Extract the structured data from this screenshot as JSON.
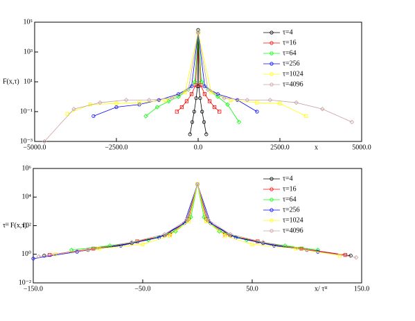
{
  "chart_data": [
    {
      "type": "line",
      "xlabel": "x",
      "ylabel": "F(x,τ)",
      "xlim": [
        -5000,
        5000
      ],
      "ylim": [
        0.001,
        100000
      ],
      "log_y": true,
      "legend": "upper right",
      "xticks": [
        {
          "value": -5000,
          "label": "−5000.0"
        },
        {
          "value": -2500,
          "label": "−2500.0"
        },
        {
          "value": 0,
          "label": "0.0"
        },
        {
          "value": 2500,
          "label": "2500.0"
        },
        {
          "value": 5000,
          "label": "5000.0"
        }
      ],
      "yticks": [
        {
          "value": 0.001,
          "label": "10⁻³"
        },
        {
          "value": 0.1,
          "label": "10⁻¹"
        },
        {
          "value": 10,
          "label": "10¹"
        },
        {
          "value": 1000,
          "label": "10³"
        },
        {
          "value": 100000,
          "label": "10⁵"
        }
      ],
      "series": [
        {
          "name": "τ=4",
          "color": "#000000",
          "x": [
            -250,
            -180,
            -120,
            -60,
            -20,
            0,
            20,
            60,
            120,
            180,
            250
          ],
          "values": [
            0.003,
            0.02,
            0.1,
            0.8,
            5,
            30000,
            5,
            0.8,
            0.1,
            0.02,
            0.003
          ]
        },
        {
          "name": "τ=16",
          "color": "#ff0000",
          "x": [
            -650,
            -500,
            -350,
            -200,
            -80,
            0,
            80,
            200,
            350,
            500,
            650
          ],
          "values": [
            0.1,
            0.2,
            0.5,
            1.5,
            6,
            20000,
            6,
            1.5,
            0.5,
            0.2,
            0.1
          ]
        },
        {
          "name": "τ=64",
          "color": "#00ff00",
          "x": [
            -1600,
            -1250,
            -900,
            -600,
            -300,
            -100,
            0,
            100,
            300,
            600,
            900,
            1250
          ],
          "values": [
            0.05,
            0.2,
            0.5,
            1,
            3,
            10,
            20000,
            10,
            3,
            1,
            0.3,
            0.02
          ]
        },
        {
          "name": "τ=256",
          "color": "#0000ff",
          "x": [
            -3200,
            -2500,
            -1800,
            -1200,
            -600,
            -200,
            0,
            200,
            600,
            1200,
            1800
          ],
          "values": [
            0.05,
            0.2,
            0.3,
            0.6,
            1.5,
            5,
            20000,
            5,
            1.5,
            0.6,
            0.1
          ]
        },
        {
          "name": "τ=1024",
          "color": "#ffff00",
          "x": [
            -4000,
            -3300,
            -2500,
            -1800,
            -1000,
            -400,
            0,
            400,
            1000,
            1800,
            2500,
            3300
          ],
          "values": [
            0.07,
            0.3,
            0.35,
            0.4,
            0.6,
            2,
            20000,
            2,
            0.6,
            0.4,
            0.35,
            0.05
          ]
        },
        {
          "name": "τ=4096",
          "color": "#c8a0a0",
          "x": [
            -4700,
            -3800,
            -3000,
            -2200,
            -1500,
            -800,
            -300,
            0,
            300,
            800,
            1500,
            2200,
            3000,
            3800,
            4700
          ],
          "values": [
            0.001,
            0.15,
            0.4,
            0.6,
            0.6,
            0.8,
            3,
            20000,
            3,
            0.8,
            0.6,
            0.6,
            0.4,
            0.15,
            0.02
          ]
        }
      ]
    },
    {
      "type": "line",
      "xlabel": "x/ τᴴ",
      "ylabel": "τᴴ F(x,τ)",
      "xlim": [
        -150,
        150
      ],
      "ylim": [
        0.01,
        1000000
      ],
      "log_y": true,
      "legend": "upper right",
      "xticks": [
        {
          "value": -150,
          "label": "−150.0"
        },
        {
          "value": -50,
          "label": "−50.0"
        },
        {
          "value": 50,
          "label": "50.0"
        },
        {
          "value": 150,
          "label": "150.0"
        }
      ],
      "yticks": [
        {
          "value": 0.01,
          "label": "10⁻²"
        },
        {
          "value": 1,
          "label": "10⁰"
        },
        {
          "value": 100,
          "label": "10²"
        },
        {
          "value": 10000,
          "label": "10⁴"
        },
        {
          "value": 1000000,
          "label": "10⁶"
        }
      ],
      "series": [
        {
          "name": "τ=4",
          "color": "#000000",
          "x": [
            -140,
            -100,
            -60,
            -30,
            -10,
            0,
            10,
            30,
            60,
            100,
            140
          ],
          "values": [
            0.8,
            2,
            6,
            20,
            200,
            80000,
            200,
            20,
            6,
            2,
            0.8
          ]
        },
        {
          "name": "τ=16",
          "color": "#ff0000",
          "x": [
            -135,
            -95,
            -55,
            -25,
            -8,
            0,
            8,
            25,
            55,
            95,
            135
          ],
          "values": [
            0.9,
            2.5,
            8,
            25,
            300,
            80000,
            300,
            25,
            8,
            2.5,
            0.9
          ]
        },
        {
          "name": "τ=64",
          "color": "#00ff00",
          "x": [
            -115,
            -80,
            -45,
            -20,
            -6,
            0,
            6,
            20,
            45,
            80,
            110
          ],
          "values": [
            2,
            4,
            10,
            40,
            400,
            80000,
            400,
            40,
            10,
            4,
            2
          ]
        },
        {
          "name": "τ=256",
          "color": "#0000ff",
          "x": [
            -150,
            -110,
            -70,
            -35,
            -12,
            0,
            12,
            35,
            70,
            110
          ],
          "values": [
            0.5,
            1.5,
            4,
            15,
            150,
            80000,
            150,
            15,
            4,
            1.5
          ]
        },
        {
          "name": "τ=1024",
          "color": "#ffff00",
          "x": [
            -130,
            -90,
            -50,
            -25,
            -8,
            0,
            8,
            25,
            50,
            90,
            130
          ],
          "values": [
            1,
            2.5,
            5,
            20,
            200,
            80000,
            200,
            20,
            5,
            2.5,
            0.8
          ]
        },
        {
          "name": "τ=4096",
          "color": "#c8a0a0",
          "x": [
            -145,
            -100,
            -60,
            -30,
            -10,
            0,
            10,
            30,
            60,
            100,
            145
          ],
          "values": [
            0.7,
            2,
            7,
            25,
            250,
            80000,
            250,
            25,
            7,
            2,
            0.6
          ]
        }
      ]
    }
  ]
}
